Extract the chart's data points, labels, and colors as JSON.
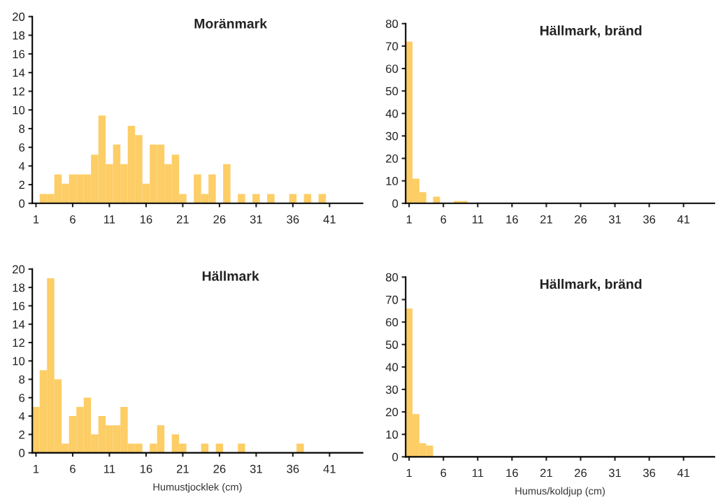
{
  "chart_data": [
    {
      "type": "histogram",
      "title": "Moränmark",
      "color": "#fdcd66",
      "bins": [
        0.5,
        1.5,
        2.5,
        3.5,
        4.5,
        5.5,
        6.5,
        7.5,
        8.5,
        9.5,
        10.5,
        11.5,
        12.5,
        13.5,
        14.5,
        15.5,
        16.5,
        17.5,
        18.5,
        19.5,
        20.5,
        21.5,
        22.5,
        23.5,
        24.5,
        25.5,
        26.5,
        27.5,
        28.5,
        29.5,
        30.5,
        31.5,
        32.5,
        33.5,
        34.5,
        35.5,
        36.5,
        37.5,
        38.5,
        39.5,
        40.5,
        41.5,
        42.5,
        43.5,
        44.5,
        45.5
      ],
      "values": [
        0,
        1.0,
        1.0,
        3.1,
        2.1,
        3.1,
        3.1,
        3.1,
        5.2,
        9.4,
        4.2,
        6.3,
        4.2,
        8.3,
        7.3,
        2.1,
        6.3,
        6.3,
        4.2,
        5.2,
        1.0,
        0,
        3.1,
        1.0,
        3.1,
        0,
        4.2,
        0,
        1.0,
        0,
        1.0,
        0,
        1.0,
        0,
        0,
        1.0,
        0,
        1.0,
        0,
        1.0,
        0,
        0,
        0,
        0,
        0
      ],
      "xlim": [
        0.5,
        45.5
      ],
      "xticks": [
        1,
        6,
        11,
        16,
        21,
        26,
        31,
        36,
        41
      ],
      "ylim": [
        0,
        20
      ],
      "yticks": [
        0,
        2,
        4,
        6,
        8,
        10,
        12,
        14,
        16,
        18,
        20
      ],
      "grid": false
    },
    {
      "type": "histogram",
      "title": "Hällmark, bränd",
      "color": "#fdcd66",
      "bins": [
        0.5,
        1.5,
        2.5,
        3.5,
        4.5,
        5.5,
        6.5,
        7.5,
        8.5,
        9.5,
        10.5,
        11.5,
        12.5,
        13.5,
        14.5,
        15.5,
        16.5,
        17.5,
        18.5,
        19.5,
        20.5,
        21.5,
        22.5,
        23.5,
        24.5,
        25.5,
        26.5,
        27.5,
        28.5,
        29.5,
        30.5,
        31.5,
        32.5,
        33.5,
        34.5,
        35.5,
        36.5,
        37.5,
        38.5,
        39.5,
        40.5,
        41.5,
        42.5,
        43.5,
        44.5,
        45.5
      ],
      "values": [
        72,
        11,
        5,
        0,
        3,
        0,
        0,
        1,
        1,
        0,
        0,
        0,
        0,
        0,
        0,
        0,
        0,
        0,
        0,
        0,
        0,
        0,
        0,
        0,
        0,
        0,
        0,
        0,
        0,
        0,
        0,
        0,
        0,
        0,
        0,
        0,
        0,
        0,
        0,
        0,
        0,
        0,
        0,
        0,
        0
      ],
      "xlim": [
        0.5,
        45.5
      ],
      "xticks": [
        1,
        6,
        11,
        16,
        21,
        26,
        31,
        36,
        41
      ],
      "ylim": [
        0,
        80
      ],
      "yticks": [
        0,
        10,
        20,
        30,
        40,
        50,
        60,
        70,
        80
      ],
      "grid": false
    },
    {
      "type": "histogram",
      "title": "Hällmark",
      "xlabel": "Humustjocklek (cm)",
      "color": "#fdcd66",
      "bins": [
        0.5,
        1.5,
        2.5,
        3.5,
        4.5,
        5.5,
        6.5,
        7.5,
        8.5,
        9.5,
        10.5,
        11.5,
        12.5,
        13.5,
        14.5,
        15.5,
        16.5,
        17.5,
        18.5,
        19.5,
        20.5,
        21.5,
        22.5,
        23.5,
        24.5,
        25.5,
        26.5,
        27.5,
        28.5,
        29.5,
        30.5,
        31.5,
        32.5,
        33.5,
        34.5,
        35.5,
        36.5,
        37.5,
        38.5,
        39.5,
        40.5,
        41.5,
        42.5,
        43.5,
        44.5,
        45.5
      ],
      "values": [
        5,
        9,
        19,
        8,
        1,
        4,
        5,
        6,
        2,
        4,
        3,
        3,
        5,
        1,
        1,
        0,
        1,
        3,
        0,
        2,
        1,
        0,
        0,
        1,
        0,
        1,
        0,
        0,
        1,
        0,
        0,
        0,
        0,
        0,
        0,
        0,
        1,
        0,
        0,
        0,
        0,
        0,
        0,
        0,
        0
      ],
      "xlim": [
        0.5,
        45.5
      ],
      "xticks": [
        1,
        6,
        11,
        16,
        21,
        26,
        31,
        36,
        41
      ],
      "ylim": [
        0,
        20
      ],
      "yticks": [
        0,
        2,
        4,
        6,
        8,
        10,
        12,
        14,
        16,
        18,
        20
      ],
      "grid": false
    },
    {
      "type": "histogram",
      "title": "Hällmark, bränd",
      "xlabel": "Humus/koldjup (cm)",
      "color": "#fdcd66",
      "bins": [
        0.5,
        1.5,
        2.5,
        3.5,
        4.5,
        5.5,
        6.5,
        7.5,
        8.5,
        9.5,
        10.5,
        11.5,
        12.5,
        13.5,
        14.5,
        15.5,
        16.5,
        17.5,
        18.5,
        19.5,
        20.5,
        21.5,
        22.5,
        23.5,
        24.5,
        25.5,
        26.5,
        27.5,
        28.5,
        29.5,
        30.5,
        31.5,
        32.5,
        33.5,
        34.5,
        35.5,
        36.5,
        37.5,
        38.5,
        39.5,
        40.5,
        41.5,
        42.5,
        43.5,
        44.5,
        45.5
      ],
      "values": [
        66,
        19,
        6,
        5,
        0,
        0,
        0,
        0,
        0,
        0,
        0,
        0,
        0,
        0,
        0,
        0,
        0,
        0,
        0,
        0,
        0,
        0,
        0,
        0,
        0,
        0,
        0,
        0,
        0,
        0,
        0,
        0,
        0,
        0,
        0,
        0,
        0,
        0,
        0,
        0,
        0,
        0,
        0,
        0,
        0
      ],
      "xlim": [
        0.5,
        45.5
      ],
      "xticks": [
        1,
        6,
        11,
        16,
        21,
        26,
        31,
        36,
        41
      ],
      "ylim": [
        0,
        80
      ],
      "yticks": [
        0,
        10,
        20,
        30,
        40,
        50,
        60,
        70,
        80
      ],
      "grid": false
    }
  ]
}
